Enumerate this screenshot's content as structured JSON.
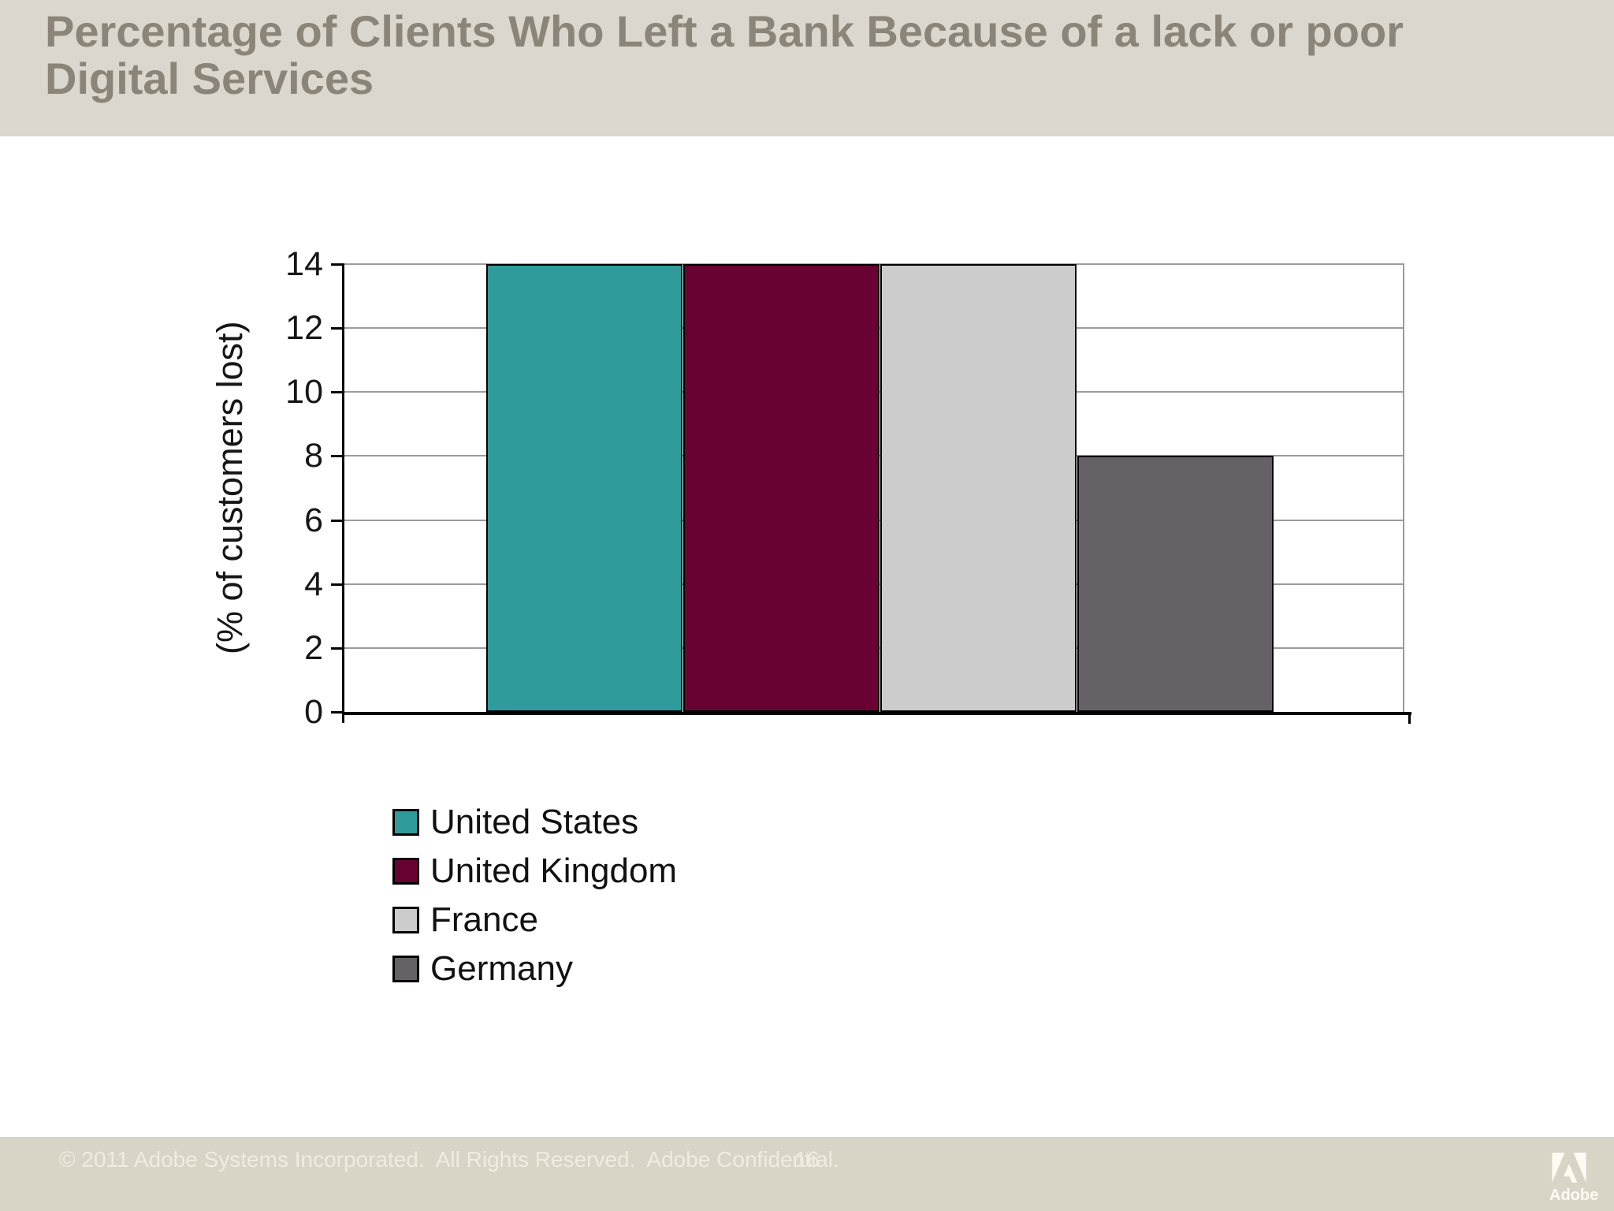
{
  "header": {
    "title": "Percentage of Clients Who Left a Bank Because of a lack or poor Digital Services"
  },
  "chart_data": {
    "type": "bar",
    "title": "Percentage of Clients Who Left a Bank Because of a lack or poor Digital Services",
    "xlabel": "",
    "ylabel": "(% of customers lost)",
    "ylim": [
      0,
      14
    ],
    "yticks": [
      0,
      2,
      4,
      6,
      8,
      10,
      12,
      14
    ],
    "grid": true,
    "legend_position": "bottom-left",
    "categories": [
      "United States",
      "United Kingdom",
      "France",
      "Germany"
    ],
    "series": [
      {
        "name": "United States",
        "value": 14,
        "color": "#2F9B9A"
      },
      {
        "name": "United Kingdom",
        "value": 14,
        "color": "#680233"
      },
      {
        "name": "France",
        "value": 14,
        "color": "#CDCCCD"
      },
      {
        "name": "Germany",
        "value": 8,
        "color": "#656266"
      }
    ]
  },
  "footer": {
    "copyright": "© 2011 Adobe Systems Incorporated.  All Rights Reserved.  Adobe Confidential.",
    "page_number": "16",
    "logo_text": "Adobe"
  },
  "colors": {
    "header_bg": "#DBD7CC",
    "footer_bg": "#D8D5C7",
    "title_text": "#8A8578",
    "footer_text": "#F0ECE0",
    "gridline": "#9B9B9B",
    "axis": "#000000"
  }
}
